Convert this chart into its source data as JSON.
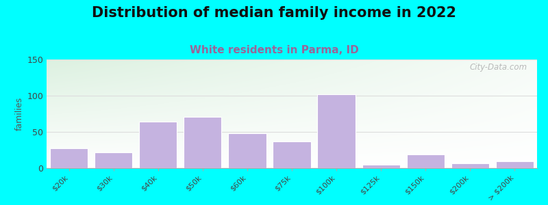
{
  "title": "Distribution of median family income in 2022",
  "subtitle": "White residents in Parma, ID",
  "ylabel": "families",
  "categories": [
    "$20k",
    "$30k",
    "$40k",
    "$50k",
    "$60k",
    "$75k",
    "$100k",
    "$125k",
    "$150k",
    "$200k",
    "> $200k"
  ],
  "values": [
    27,
    22,
    64,
    71,
    48,
    37,
    102,
    5,
    19,
    7,
    9
  ],
  "bar_color": "#c5b3e0",
  "bar_edge_color": "#b39ddb",
  "ylim": [
    0,
    150
  ],
  "yticks": [
    0,
    50,
    100,
    150
  ],
  "bg_left_color": "#c8ebc8",
  "bg_right_color": "#f0f8f0",
  "bg_top_color": "#ffffff",
  "bg_outer": "#00ffff",
  "title_fontsize": 15,
  "subtitle_fontsize": 11,
  "subtitle_color": "#996699",
  "watermark": "City-Data.com",
  "grid_color": "#dddddd"
}
